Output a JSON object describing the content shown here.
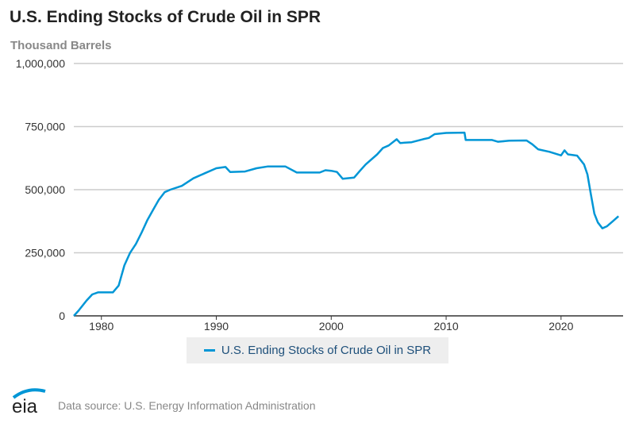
{
  "chart_data": {
    "type": "line",
    "title": "U.S. Ending Stocks of Crude Oil in SPR",
    "ylabel": "Thousand Barrels",
    "xlabel": "",
    "ylim": [
      0,
      1000000
    ],
    "xlim": [
      1977.6,
      2025.4
    ],
    "yticks": [
      "0",
      "250,000",
      "500,000",
      "750,000",
      "1,000,000"
    ],
    "ytick_values": [
      0,
      250000,
      500000,
      750000,
      1000000
    ],
    "xticks": [
      "1980",
      "1990",
      "2000",
      "2010",
      "2020"
    ],
    "xtick_values": [
      1980,
      1990,
      2000,
      2010,
      2020
    ],
    "grid": true,
    "legend_position": "bottom-center",
    "series": [
      {
        "name": "U.S. Ending Stocks of Crude Oil in SPR",
        "color": "#0096d6",
        "x": [
          1977.6,
          1978,
          1978.7,
          1979.2,
          1979.7,
          1981,
          1981.5,
          1982,
          1982.5,
          1983,
          1983.5,
          1984,
          1984.5,
          1985,
          1985.5,
          1986,
          1987,
          1988,
          1989,
          1990,
          1990.8,
          1991.2,
          1992.5,
          1993.5,
          1994.5,
          1996,
          1997,
          1999,
          1999.5,
          2000,
          2000.5,
          2001,
          2002,
          2002.5,
          2003,
          2004,
          2004.5,
          2005,
          2005.7,
          2006,
          2007,
          2008,
          2008.5,
          2009,
          2010,
          2011.6,
          2011.7,
          2014,
          2014.5,
          2015.5,
          2017,
          2017.5,
          2018,
          2019,
          2020,
          2020.3,
          2020.6,
          2021.4,
          2022,
          2022.3,
          2022.6,
          2022.9,
          2023.2,
          2023.6,
          2024,
          2024.5,
          2025
        ],
        "values": [
          0,
          20000,
          60000,
          85000,
          93000,
          93000,
          120000,
          200000,
          250000,
          285000,
          330000,
          380000,
          420000,
          460000,
          490000,
          500000,
          515000,
          545000,
          565000,
          585000,
          590000,
          570000,
          572000,
          585000,
          592000,
          592000,
          568000,
          568000,
          577000,
          575000,
          570000,
          543000,
          548000,
          575000,
          600000,
          640000,
          665000,
          675000,
          700000,
          685000,
          688000,
          700000,
          705000,
          720000,
          725000,
          726000,
          697000,
          697000,
          690000,
          694000,
          695000,
          680000,
          660000,
          650000,
          636000,
          656000,
          640000,
          635000,
          600000,
          560000,
          480000,
          405000,
          370000,
          347000,
          355000,
          375000,
          395000
        ]
      }
    ]
  },
  "legend_label": "U.S. Ending Stocks of Crude Oil in SPR",
  "logo_text": "eia",
  "source": "Data source: U.S. Energy Information Administration"
}
